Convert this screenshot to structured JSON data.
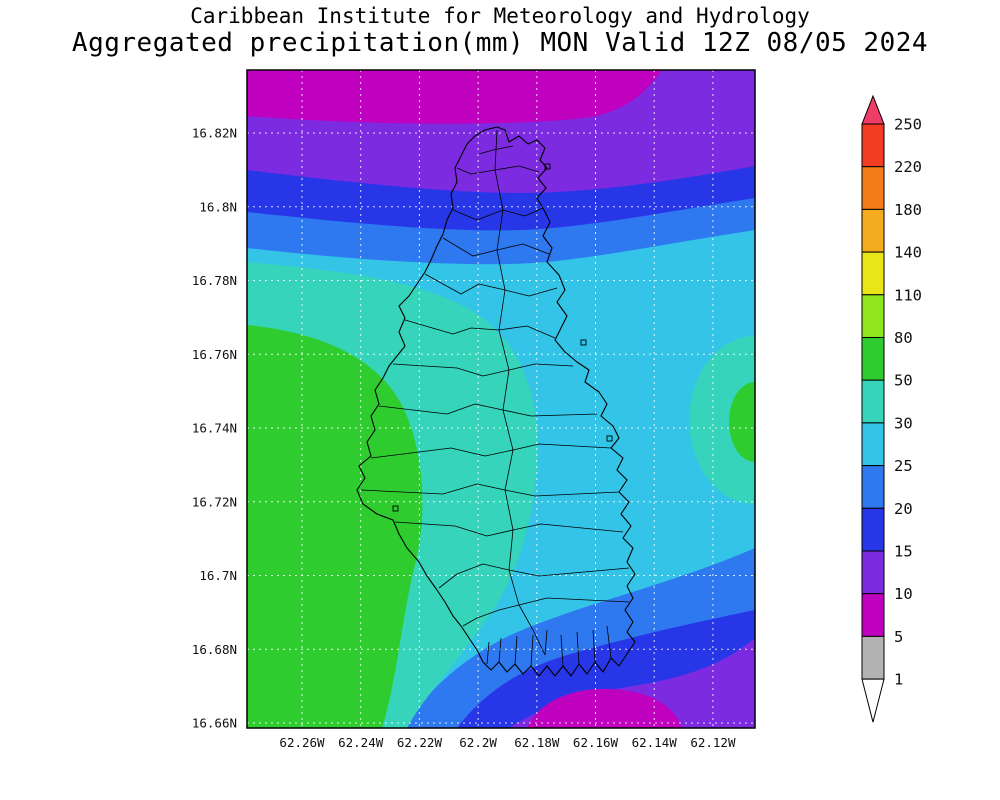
{
  "header": {
    "title_line1": "Caribbean Institute for Meteorology and Hydrology",
    "title_line2": "Aggregated precipitation(mm) MON Valid 12Z 08/05 2024"
  },
  "map": {
    "lat_labels": [
      "16.82N",
      "16.8N",
      "16.78N",
      "16.76N",
      "16.74N",
      "16.72N",
      "16.7N",
      "16.68N",
      "16.66N"
    ],
    "lon_labels": [
      "62.26W",
      "62.24W",
      "62.22W",
      "62.2W",
      "62.18W",
      "62.16W",
      "62.14W",
      "62.12W"
    ]
  },
  "precip_levels": [
    {
      "min": 1,
      "max": 5,
      "color": "#b3b3b3"
    },
    {
      "min": 5,
      "max": 10,
      "color": "#bf00bf"
    },
    {
      "min": 10,
      "max": 15,
      "color": "#7d2be0"
    },
    {
      "min": 15,
      "max": 20,
      "color": "#2737e8"
    },
    {
      "min": 20,
      "max": 25,
      "color": "#2e78f0"
    },
    {
      "min": 25,
      "max": 30,
      "color": "#33c4e8"
    },
    {
      "min": 30,
      "max": 50,
      "color": "#35d4bb"
    },
    {
      "min": 50,
      "max": 80,
      "color": "#2fcc2f"
    },
    {
      "min": 80,
      "max": 110,
      "color": "#90e61e"
    },
    {
      "min": 110,
      "max": 140,
      "color": "#e8e619"
    },
    {
      "min": 140,
      "max": 180,
      "color": "#f5ab1e"
    },
    {
      "min": 180,
      "max": 220,
      "color": "#f57b19"
    },
    {
      "min": 220,
      "max": 250,
      "color": "#f23d24"
    }
  ],
  "colorbar": {
    "tick_labels": [
      "250",
      "220",
      "180",
      "140",
      "110",
      "80",
      "50",
      "30",
      "25",
      "20",
      "15",
      "10",
      "5",
      "1"
    ],
    "over_color": "#ee3d66",
    "under_color": "#ffffff"
  },
  "chart_data": {
    "type": "heatmap",
    "subtype": "filled-contour precipitation map",
    "title": "Aggregated precipitation(mm) MON Valid 12Z 08/05 2024",
    "source": "Caribbean Institute for Meteorology and Hydrology",
    "units": "mm",
    "x_ticks": [
      "62.26W",
      "62.24W",
      "62.22W",
      "62.2W",
      "62.18W",
      "62.16W",
      "62.14W",
      "62.12W"
    ],
    "y_ticks": [
      "16.82N",
      "16.8N",
      "16.78N",
      "16.76N",
      "16.74N",
      "16.72N",
      "16.7N",
      "16.68N",
      "16.66N"
    ],
    "contour_levels": [
      1,
      5,
      10,
      15,
      20,
      25,
      30,
      50,
      80,
      110,
      140,
      180,
      220,
      250
    ],
    "level_colors_low_to_high": [
      "#b3b3b3",
      "#bf00bf",
      "#7d2be0",
      "#2737e8",
      "#2e78f0",
      "#33c4e8",
      "#35d4bb",
      "#2fcc2f",
      "#90e61e",
      "#e8e619",
      "#f5ab1e",
      "#f57b19",
      "#f23d24"
    ],
    "legend_position": "right",
    "grid": true,
    "pattern_summary": "5-10 mm along the northern and southern domain edges increasing through 10-25 mm bands toward centre; 25-30 mm over most of the mid-domain; 30-50 mm ringing the island and along part of the eastern edge; 50-80 mm over the far west/southwest of the domain with a small 50-80 mm pocket at the eastern boundary near 16.75N."
  }
}
